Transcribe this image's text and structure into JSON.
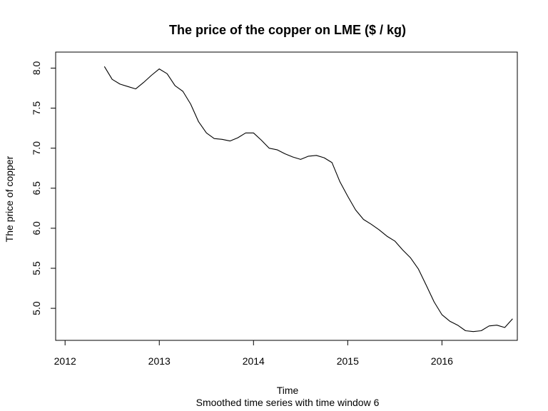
{
  "chart_data": {
    "type": "line",
    "title": "The price of the copper on LME ($ / kg)",
    "xlabel": "Time",
    "subtitle": "Smoothed time series with time window 6",
    "ylabel": "The price of copper",
    "xlim": [
      2011.9,
      2016.8
    ],
    "ylim": [
      4.6,
      8.2
    ],
    "x_ticks": [
      2012,
      2013,
      2014,
      2015,
      2016
    ],
    "x_tick_labels": [
      "2012",
      "2013",
      "2014",
      "2015",
      "2016"
    ],
    "y_ticks": [
      5.0,
      5.5,
      6.0,
      6.5,
      7.0,
      7.5,
      8.0
    ],
    "y_tick_labels": [
      "5.0",
      "5.5",
      "6.0",
      "6.5",
      "7.0",
      "7.5",
      "8.0"
    ],
    "grid": false,
    "series": [
      {
        "name": "copper price",
        "color": "#000000",
        "x": [
          2012.417,
          2012.5,
          2012.583,
          2012.667,
          2012.75,
          2012.833,
          2012.917,
          2013.0,
          2013.083,
          2013.167,
          2013.25,
          2013.333,
          2013.417,
          2013.5,
          2013.583,
          2013.667,
          2013.75,
          2013.833,
          2013.917,
          2014.0,
          2014.083,
          2014.167,
          2014.25,
          2014.333,
          2014.417,
          2014.5,
          2014.583,
          2014.667,
          2014.75,
          2014.833,
          2014.917,
          2015.0,
          2015.083,
          2015.167,
          2015.25,
          2015.333,
          2015.417,
          2015.5,
          2015.583,
          2015.667,
          2015.75,
          2015.833,
          2015.917,
          2016.0,
          2016.083,
          2016.167,
          2016.25,
          2016.333,
          2016.417,
          2016.5,
          2016.583,
          2016.667,
          2016.75
        ],
        "values": [
          8.02,
          7.86,
          7.8,
          7.77,
          7.74,
          7.82,
          7.91,
          7.99,
          7.93,
          7.78,
          7.71,
          7.55,
          7.33,
          7.19,
          7.12,
          7.11,
          7.09,
          7.13,
          7.19,
          7.19,
          7.1,
          7.0,
          6.98,
          6.93,
          6.89,
          6.86,
          6.9,
          6.91,
          6.88,
          6.82,
          6.58,
          6.4,
          6.23,
          6.11,
          6.05,
          5.98,
          5.9,
          5.84,
          5.73,
          5.63,
          5.49,
          5.29,
          5.08,
          4.92,
          4.84,
          4.79,
          4.72,
          4.71,
          4.72,
          4.78,
          4.79,
          4.76,
          4.87
        ]
      }
    ]
  }
}
